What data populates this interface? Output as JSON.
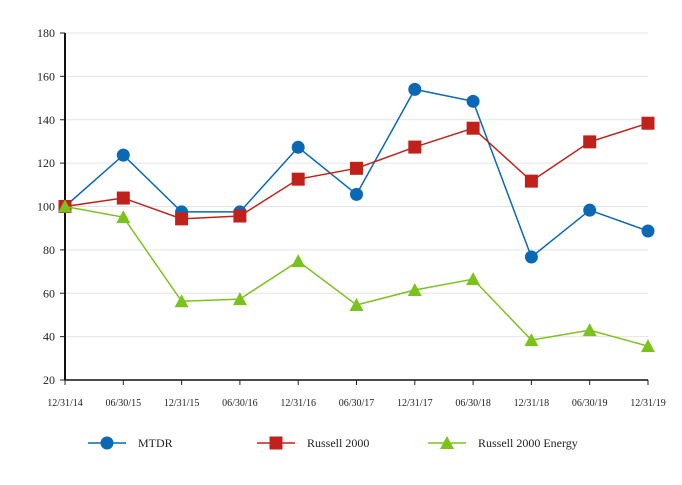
{
  "chart_data": {
    "type": "line",
    "title": "",
    "xlabel": "",
    "ylabel": "",
    "categories": [
      "12/31/14",
      "06/30/15",
      "12/31/15",
      "06/30/16",
      "12/31/16",
      "06/30/17",
      "12/31/17",
      "06/30/18",
      "12/31/18",
      "06/30/19",
      "12/31/19"
    ],
    "ylim": [
      20,
      180
    ],
    "yticks": [
      20,
      40,
      60,
      80,
      100,
      120,
      140,
      160,
      180
    ],
    "grid": true,
    "legend_position": "bottom",
    "series": [
      {
        "name": "MTDR",
        "color": "#0a68b5",
        "marker": "circle",
        "values": [
          100,
          123.7,
          97.5,
          97.5,
          127.3,
          105.6,
          154.0,
          148.5,
          76.7,
          98.3,
          88.7
        ]
      },
      {
        "name": "Russell 2000",
        "color": "#c0221b",
        "marker": "square",
        "values": [
          100,
          103.9,
          94.3,
          95.6,
          112.6,
          117.6,
          127.4,
          136.1,
          111.7,
          129.8,
          138.4
        ]
      },
      {
        "name": "Russell 2000 Energy",
        "color": "#7cc21d",
        "marker": "triangle",
        "values": [
          100,
          95.1,
          56.3,
          57.3,
          74.8,
          54.6,
          61.5,
          66.5,
          38.4,
          43.0,
          35.6
        ]
      }
    ]
  }
}
